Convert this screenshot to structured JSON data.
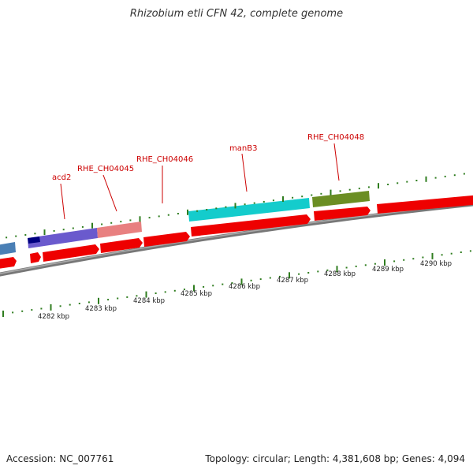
{
  "title": "Rhizobium etli CFN 42, complete genome",
  "accession": "Accession: NC_007761",
  "summary": "Topology: circular; Length: 4,381,608 bp; Genes: 4,094",
  "colors": {
    "label": "#cc0000",
    "tick": "#2f7d1f",
    "backbone": "#777777",
    "gene_red": "#ee0000",
    "blue": "#4a7fb5",
    "purple": "#6a5acd",
    "dark_navy": "#000080",
    "pink": "#e88080",
    "cyan": "#14cccc",
    "olive": "#6b8e23"
  },
  "scale_labels": [
    "4282 kbp",
    "4283 kbp",
    "4284 kbp",
    "4285 kbp",
    "4286 kbp",
    "4287 kbp",
    "4288 kbp",
    "4289 kbp",
    "4290 kbp"
  ],
  "gene_labels": [
    "acd2",
    "RHE_CH04045",
    "RHE_CH04046",
    "manB3",
    "RHE_CH04048"
  ]
}
